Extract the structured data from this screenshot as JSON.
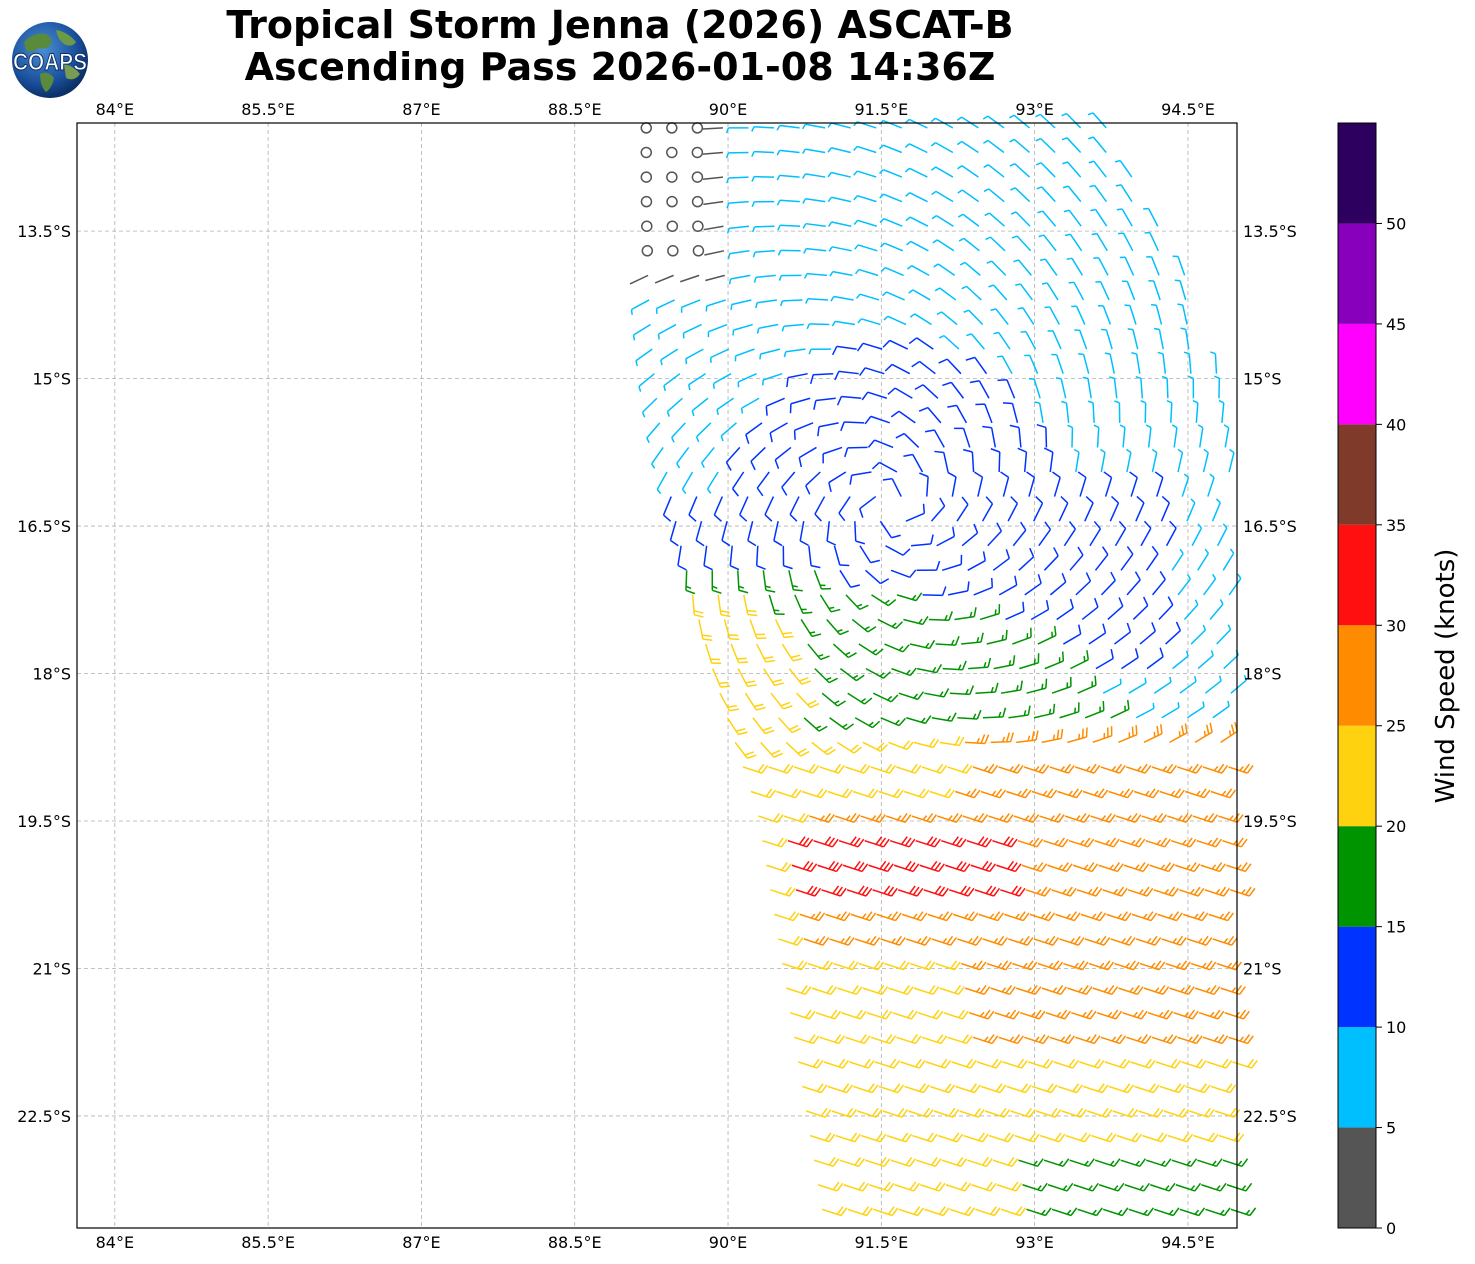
{
  "title": {
    "line1": "Tropical Storm Jenna (2026) ASCAT-B",
    "line2": "Ascending Pass 2026-01-08 14:36Z"
  },
  "logo": {
    "text": "COAPS",
    "icon": "earth-globe-icon"
  },
  "map": {
    "lon_range": [
      83.63,
      94.98
    ],
    "lat_range": [
      -23.64,
      -12.4
    ],
    "lon_ticks": [
      84,
      85.5,
      87,
      88.5,
      90,
      91.5,
      93,
      94.5
    ],
    "lon_tick_labels": [
      "84°E",
      "85.5°E",
      "87°E",
      "88.5°E",
      "90°E",
      "91.5°E",
      "93°E",
      "94.5°E"
    ],
    "lat_ticks": [
      -13.5,
      -15,
      -16.5,
      -18,
      -19.5,
      -21,
      -22.5
    ],
    "lat_tick_labels": [
      "13.5°S",
      "15°S",
      "16.5°S",
      "18°S",
      "19.5°S",
      "21°S",
      "22.5°S"
    ],
    "grid": true,
    "background": "#ffffff"
  },
  "colorbar": {
    "label": "Wind Speed (knots)",
    "range": [
      0,
      55
    ],
    "tick_values": [
      0,
      5,
      10,
      15,
      20,
      25,
      30,
      35,
      40,
      45,
      50
    ],
    "tick_labels": [
      "0",
      "5",
      "10",
      "15",
      "20",
      "25",
      "30",
      "35",
      "40",
      "45",
      "50"
    ],
    "bins": [
      {
        "min": 0,
        "max": 5,
        "color": "#555555"
      },
      {
        "min": 5,
        "max": 10,
        "color": "#00bfff"
      },
      {
        "min": 10,
        "max": 15,
        "color": "#0033ff"
      },
      {
        "min": 15,
        "max": 20,
        "color": "#009400"
      },
      {
        "min": 20,
        "max": 25,
        "color": "#ffd20f"
      },
      {
        "min": 25,
        "max": 30,
        "color": "#ff8c00"
      },
      {
        "min": 30,
        "max": 35,
        "color": "#ff0f0f"
      },
      {
        "min": 35,
        "max": 40,
        "color": "#803a2a"
      },
      {
        "min": 40,
        "max": 45,
        "color": "#ff00ff"
      },
      {
        "min": 45,
        "max": 50,
        "color": "#8800bb"
      },
      {
        "min": 50,
        "max": 55,
        "color": "#2d0060"
      }
    ]
  },
  "chart_data": {
    "type": "wind-barb-field",
    "units": "knots",
    "swath": {
      "lat_top": -12.4,
      "lat_bottom": -23.64,
      "west_edge_lon_at_top": 89.2,
      "west_edge_lon_at_bottom": 90.95,
      "east_edge_lon": 94.98,
      "east_edge_lon_near_top": 93.7,
      "spacing_deg": 0.25
    },
    "storm_circulation_center": {
      "lon": 91.6,
      "lat": -16.3
    },
    "calm_region": {
      "lon_range": [
        89.1,
        90.1
      ],
      "lat_range": [
        -14.1,
        -12.4
      ]
    },
    "speed_regions": [
      {
        "region": "north-west swath edge",
        "speed_knots": 3
      },
      {
        "region": "north and central swath",
        "speed_knots": 8
      },
      {
        "region": "inner circulation",
        "speed_knots": 12
      },
      {
        "region": "band south of center",
        "speed_knots": 17
      },
      {
        "region": "southern swath",
        "speed_knots": 22
      },
      {
        "region": "south-east swath",
        "speed_knots": 27
      },
      {
        "region": "strongest band near 20°S, 90.5–92.7°E",
        "speed_knots": 32
      },
      {
        "region": "far south-east corner",
        "speed_knots": 17
      }
    ]
  }
}
